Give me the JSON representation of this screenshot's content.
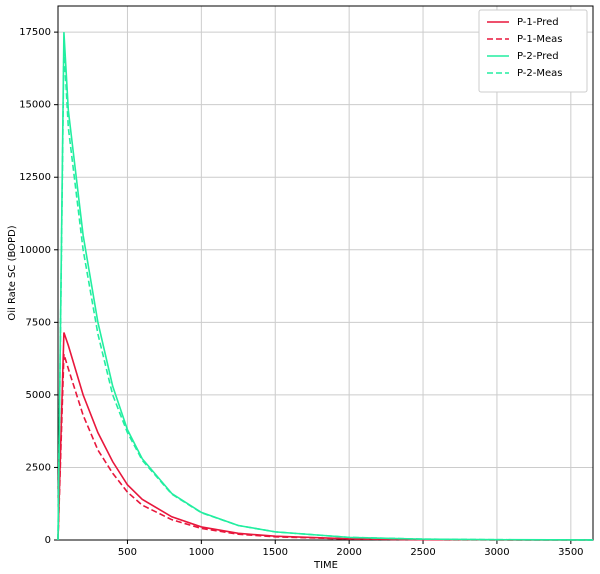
{
  "chart_data": {
    "type": "line",
    "xlabel": "TIME",
    "ylabel": "Oil Rate SC (BOPD)",
    "x": [
      30,
      70,
      100,
      200,
      300,
      400,
      500,
      600,
      800,
      1000,
      1250,
      1500,
      2000,
      2500,
      3000,
      3650
    ],
    "series": [
      {
        "name": "P-1-Pred",
        "color": "#e8173c",
        "linestyle": "solid",
        "values": [
          0,
          7150,
          6700,
          5000,
          3700,
          2700,
          1900,
          1400,
          800,
          450,
          230,
          130,
          40,
          12,
          4,
          1
        ]
      },
      {
        "name": "P-1-Meas",
        "color": "#e8173c",
        "linestyle": "dashed",
        "values": [
          0,
          6400,
          5900,
          4300,
          3100,
          2300,
          1650,
          1200,
          700,
          400,
          200,
          110,
          35,
          10,
          3,
          1
        ]
      },
      {
        "name": "P-2-Pred",
        "color": "#22eea0",
        "linestyle": "solid",
        "values": [
          0,
          17500,
          14800,
          10500,
          7500,
          5300,
          3800,
          2800,
          1600,
          950,
          500,
          280,
          90,
          30,
          10,
          2
        ]
      },
      {
        "name": "P-2-Meas",
        "color": "#22eea0",
        "linestyle": "dashed",
        "values": [
          0,
          17000,
          14200,
          10000,
          7100,
          5000,
          3700,
          2750,
          1580,
          940,
          500,
          280,
          90,
          30,
          10,
          2
        ]
      }
    ],
    "xlim": [
      30,
      3650
    ],
    "ylim": [
      0,
      18400
    ],
    "xticks": [
      500,
      1000,
      1500,
      2000,
      2500,
      3000,
      3500
    ],
    "yticks": [
      0,
      2500,
      5000,
      7500,
      10000,
      12500,
      15000,
      17500
    ],
    "grid": true,
    "legend": "upper right"
  }
}
